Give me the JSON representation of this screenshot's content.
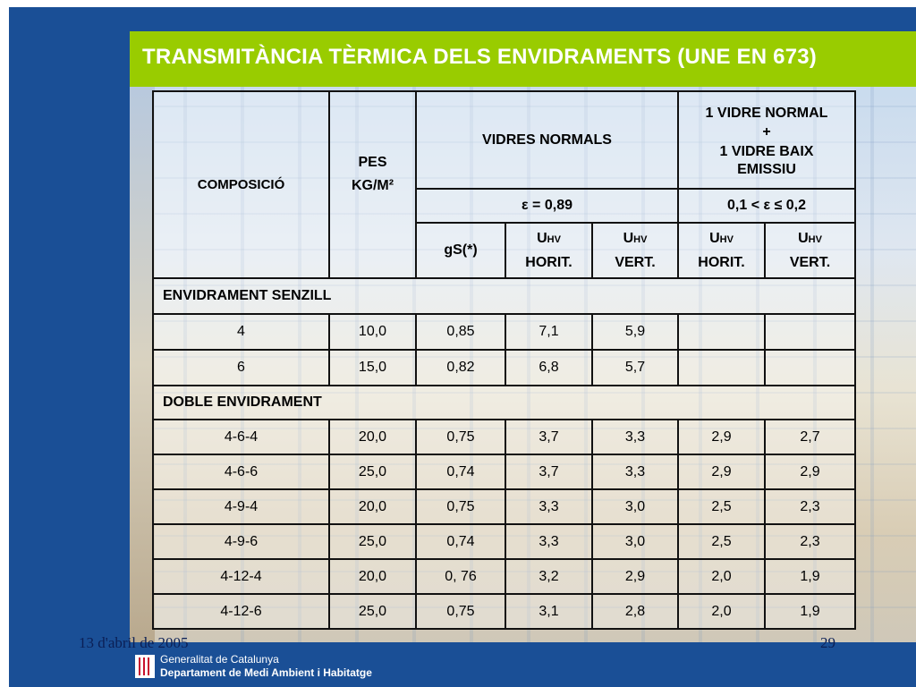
{
  "title": "TRANSMITÀNCIA TÈRMICA DELS ENVIDRAMENTS (UNE  EN 673)",
  "table": {
    "header": {
      "composicio": "COMPOSICIÓ",
      "pes": "PES",
      "pes_unit": "KG/M²",
      "vidres_normals": "VIDRES NORMALS",
      "vidre_baix_line1": "1 VIDRE NORMAL",
      "vidre_baix_line2": "+",
      "vidre_baix_line3": "1 VIDRE BAIX EMISSIU",
      "epsilon_normal": "ε = 0,89",
      "epsilon_baix": "0,1 < ε ≤ 0,2",
      "gs": "gS(*)",
      "u_main": "U",
      "u_sub": "HV",
      "horit": "HORIT.",
      "vert": "VERT."
    },
    "section_senzill": "ENVIDRAMENT SENZILL",
    "senzill_rows": [
      {
        "comp": "4",
        "pes": "10,0",
        "gs": "0,85",
        "uh": "7,1",
        "uv": "5,9",
        "bh": "",
        "bv": ""
      },
      {
        "comp": "6",
        "pes": "15,0",
        "gs": "0,82",
        "uh": "6,8",
        "uv": "5,7",
        "bh": "",
        "bv": ""
      }
    ],
    "section_doble": "DOBLE ENVIDRAMENT",
    "doble_rows": [
      {
        "comp": "4-6-4",
        "pes": "20,0",
        "gs": "0,75",
        "uh": "3,7",
        "uv": "3,3",
        "bh": "2,9",
        "bv": "2,7"
      },
      {
        "comp": "4-6-6",
        "pes": "25,0",
        "gs": "0,74",
        "uh": "3,7",
        "uv": "3,3",
        "bh": "2,9",
        "bv": "2,9"
      },
      {
        "comp": "4-9-4",
        "pes": "20,0",
        "gs": "0,75",
        "uh": "3,3",
        "uv": "3,0",
        "bh": "2,5",
        "bv": "2,3"
      },
      {
        "comp": "4-9-6",
        "pes": "25,0",
        "gs": "0,74",
        "uh": "3,3",
        "uv": "3,0",
        "bh": "2,5",
        "bv": "2,3"
      },
      {
        "comp": "4-12-4",
        "pes": "20,0",
        "gs": "0, 76",
        "uh": "3,2",
        "uv": "2,9",
        "bh": "2,0",
        "bv": "1,9"
      },
      {
        "comp": "4-12-6",
        "pes": "25,0",
        "gs": "0,75",
        "uh": "3,1",
        "uv": "2,8",
        "bh": "2,0",
        "bv": "1,9"
      }
    ]
  },
  "footer": {
    "date": "13 d'abril de 2005",
    "page": "29",
    "org_line1": "Generalitat de Catalunya",
    "org_line2": "Departament de Medi Ambient i Habitatge"
  },
  "colors": {
    "background": "#1a4f96",
    "title_bar": "#99cc00",
    "title_text": "#ffffff"
  }
}
